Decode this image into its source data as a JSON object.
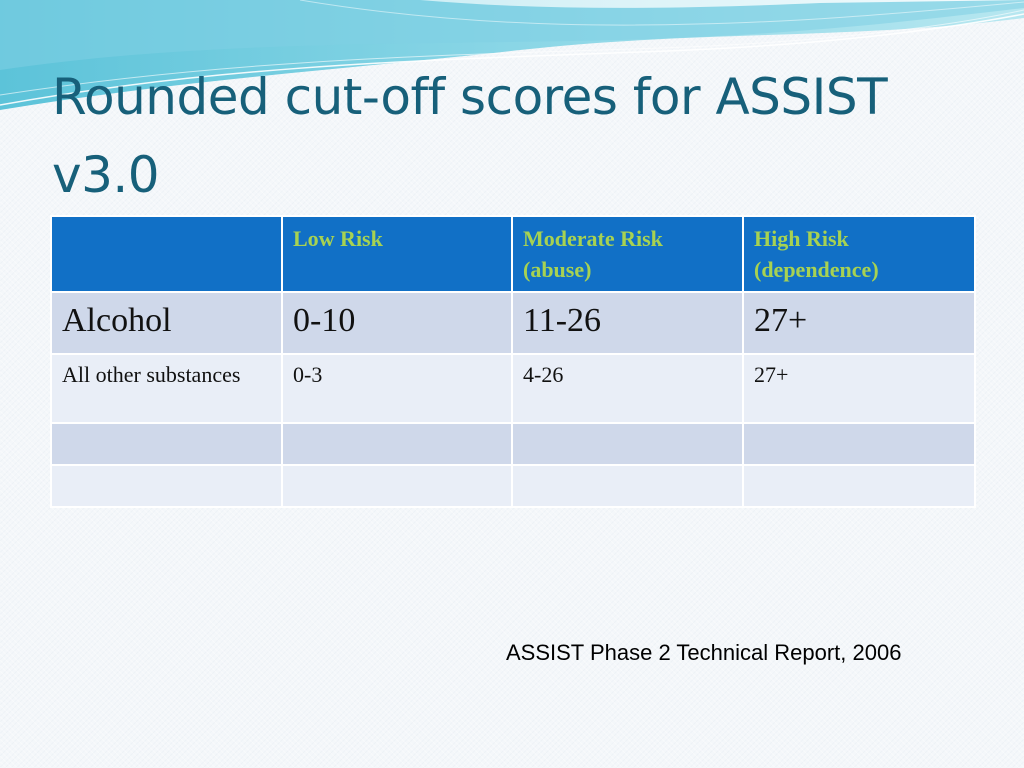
{
  "slide": {
    "title": "Rounded cut-off scores for ASSIST v3.0",
    "source": "ASSIST Phase 2 Technical Report, 2006"
  },
  "table": {
    "headers": [
      "",
      "Low Risk",
      "Moderate Risk (abuse)",
      "High Risk (dependence)"
    ],
    "rows": [
      [
        "Alcohol",
        "0-10",
        "11-26",
        "27+"
      ],
      [
        "All other substances",
        "0-3",
        "4-26",
        "27+"
      ],
      [
        "",
        "",
        "",
        ""
      ],
      [
        "",
        "",
        "",
        ""
      ]
    ]
  },
  "colors": {
    "title": "#17607a",
    "header_bg": "#1170c6",
    "header_text": "#a7d252",
    "row_dark": "#cfd8ea",
    "row_light": "#e9eef7"
  }
}
